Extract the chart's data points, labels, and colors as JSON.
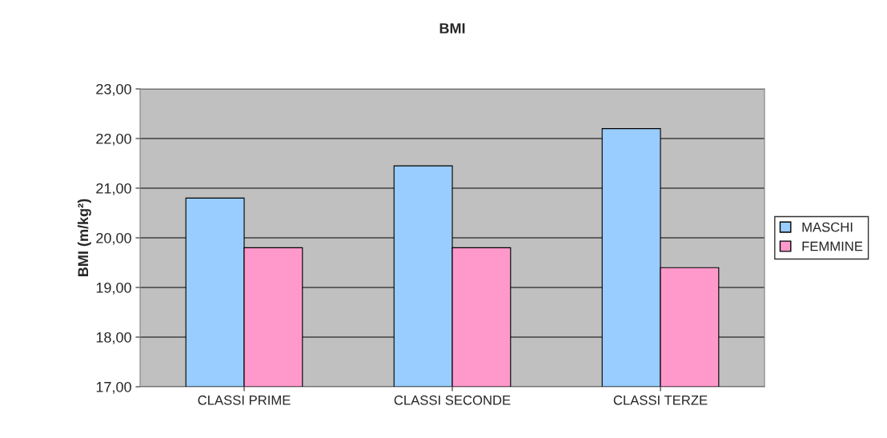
{
  "chart_data": {
    "type": "bar",
    "title": "BMI",
    "ylabel": "BMI (m/kg²)",
    "categories": [
      "CLASSI PRIME",
      "CLASSI SECONDE",
      "CLASSI TERZE"
    ],
    "series": [
      {
        "name": "MASCHI",
        "color": "#99ccff",
        "values": [
          20.8,
          21.45,
          22.2
        ]
      },
      {
        "name": "FEMMINE",
        "color": "#ff99cc",
        "values": [
          19.8,
          19.8,
          19.4
        ]
      }
    ],
    "ylim": [
      17,
      23
    ],
    "yticks": [
      {
        "value": 17,
        "label": "17,00"
      },
      {
        "value": 18,
        "label": "18,00"
      },
      {
        "value": 19,
        "label": "19,00"
      },
      {
        "value": 20,
        "label": "20,00"
      },
      {
        "value": 21,
        "label": "21,00"
      },
      {
        "value": 22,
        "label": "22,00"
      },
      {
        "value": 23,
        "label": "23,00"
      }
    ],
    "grid": "y",
    "legend": "right"
  }
}
